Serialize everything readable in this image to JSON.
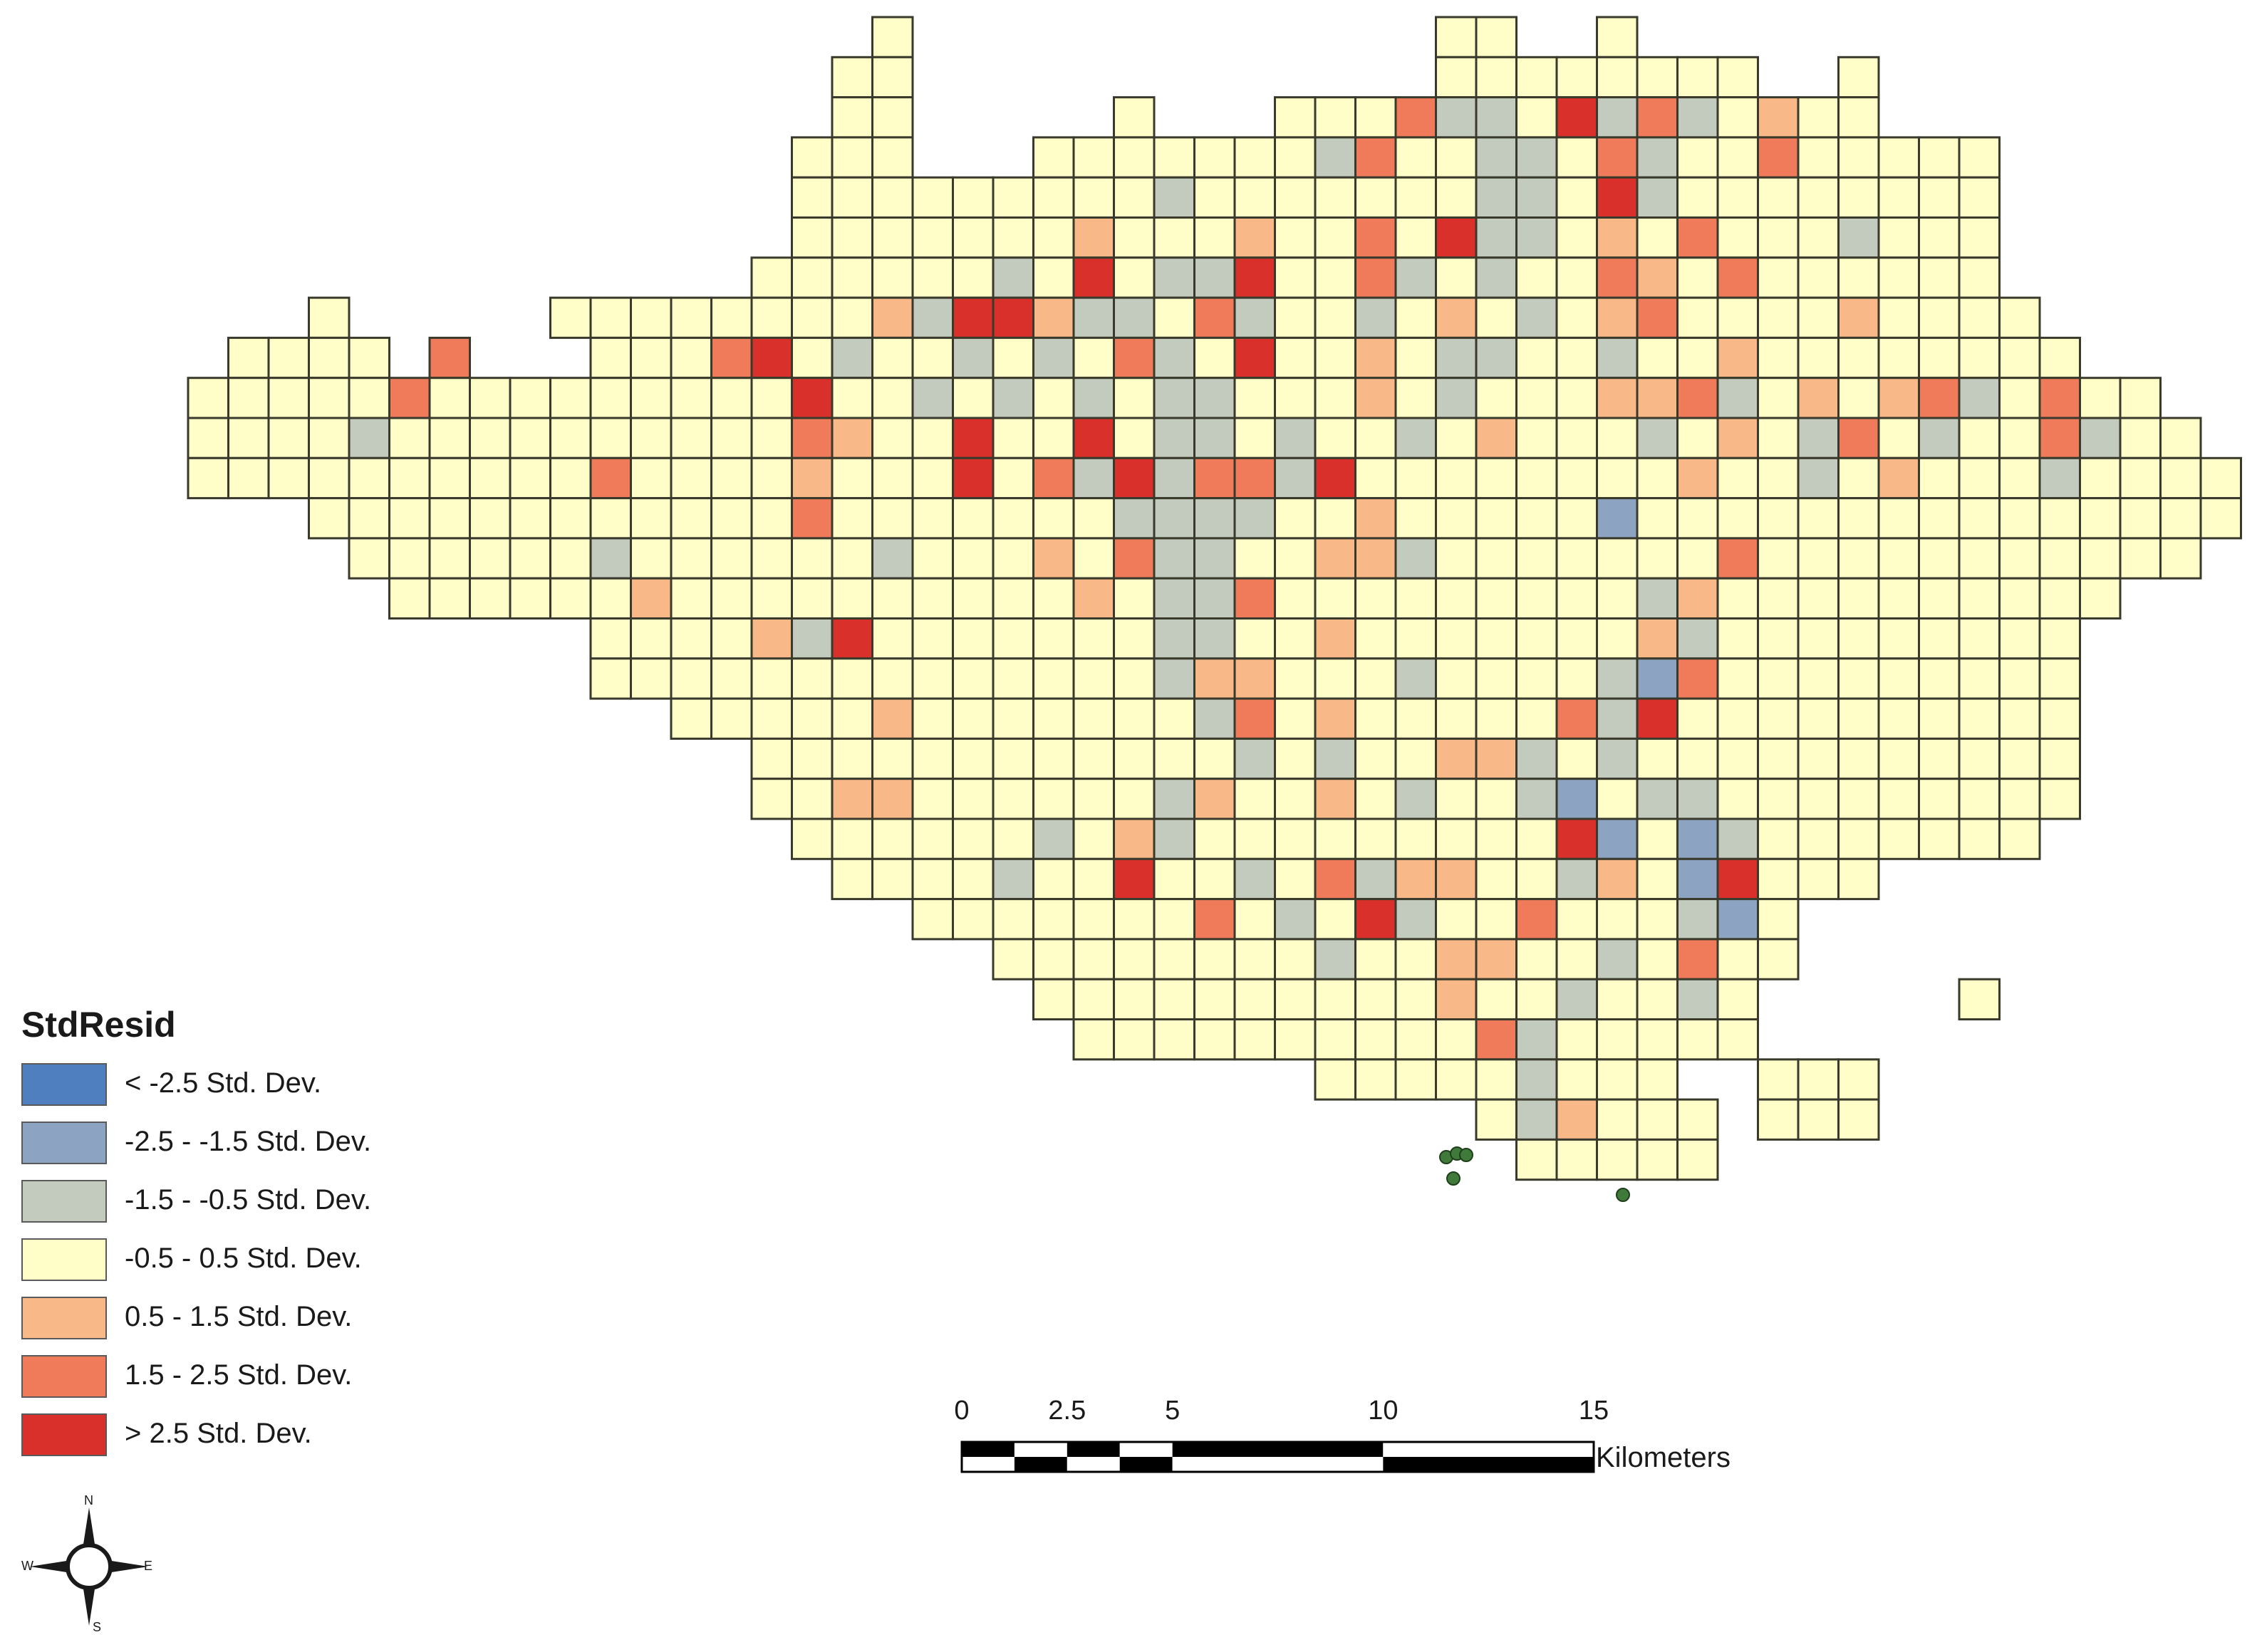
{
  "colors": {
    "lt_neg_2_5": "#4f7fbf",
    "neg_2_5_to_neg_1_5": "#8da3c2",
    "neg_1_5_to_neg_0_5": "#c2cbbd",
    "neg_0_5_to_0_5": "#fffdc8",
    "pos_0_5_to_1_5": "#f8b887",
    "pos_1_5_to_2_5": "#ef7b5a",
    "gt_2_5": "#d9302b",
    "cell_border": "#3a3a2c"
  },
  "legend": {
    "title": "StdResid",
    "items": [
      {
        "label": "< -2.5 Std. Dev.",
        "color": "#4f7fbf"
      },
      {
        "label": "-2.5 - -1.5 Std. Dev.",
        "color": "#8da3c2"
      },
      {
        "label": "-1.5 - -0.5 Std. Dev.",
        "color": "#c2cbbd"
      },
      {
        "label": "-0.5 - 0.5 Std. Dev.",
        "color": "#fffdc8"
      },
      {
        "label": "0.5 - 1.5 Std. Dev.",
        "color": "#f8b887"
      },
      {
        "label": "1.5 - 2.5 Std. Dev.",
        "color": "#ef7b5a"
      },
      {
        "label": "> 2.5 Std. Dev.",
        "color": "#d9302b"
      }
    ]
  },
  "scale_bar": {
    "ticks": [
      "0",
      "2.5",
      "5",
      "10",
      "15"
    ],
    "unit": "Kilometers"
  },
  "north_arrow": {
    "icon": "compass-rose-icon",
    "letters": {
      "n": "N",
      "s": "S",
      "e": "E",
      "w": "W"
    }
  }
}
